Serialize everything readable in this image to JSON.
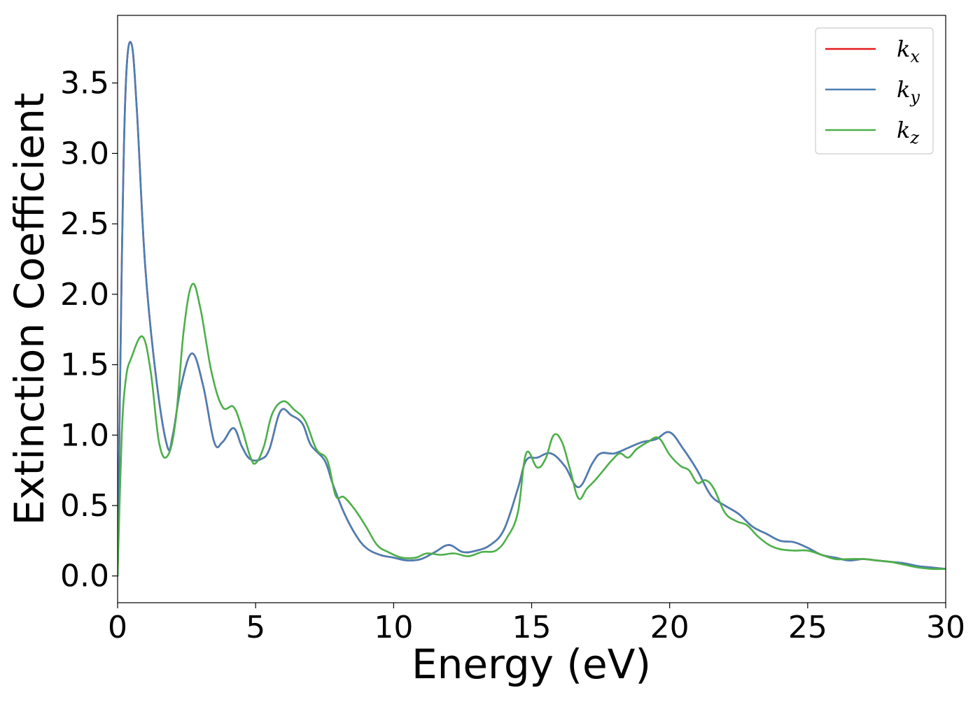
{
  "chart_data": {
    "type": "line",
    "xlabel": "Energy (eV)",
    "ylabel": "Extinction Coefficient",
    "xlim": [
      0,
      30
    ],
    "ylim": [
      -0.19,
      3.98
    ],
    "xticks": [
      0,
      5,
      10,
      15,
      20,
      25,
      30
    ],
    "xtick_labels": [
      "0",
      "5",
      "10",
      "15",
      "20",
      "25",
      "30"
    ],
    "yticks": [
      0.0,
      0.5,
      1.0,
      1.5,
      2.0,
      2.5,
      3.0,
      3.5
    ],
    "ytick_labels": [
      "0.0",
      "0.5",
      "1.0",
      "1.5",
      "2.0",
      "2.5",
      "3.0",
      "3.5"
    ],
    "grid": false,
    "legend_position": "top-right",
    "series": [
      {
        "name": "k",
        "subscript": "x",
        "color": "#e41a1c",
        "x": [
          0,
          0.15,
          0.3,
          0.5,
          0.7,
          1.0,
          1.4,
          1.8,
          2.0,
          2.3,
          2.7,
          3.1,
          3.5,
          3.8,
          4.2,
          4.5,
          4.8,
          5.2,
          5.5,
          5.9,
          6.3,
          6.7,
          7.0,
          7.5,
          7.8,
          8.2,
          8.6,
          9.0,
          9.5,
          10.0,
          10.5,
          11.0,
          11.5,
          12.0,
          12.5,
          13.0,
          13.5,
          14.0,
          14.5,
          14.8,
          15.2,
          15.7,
          16.2,
          16.7,
          17.2,
          17.5,
          18.0,
          18.5,
          19.0,
          19.5,
          20.0,
          20.5,
          21.0,
          21.5,
          22.0,
          22.5,
          23.0,
          23.5,
          24.0,
          24.5,
          25.0,
          25.5,
          26.0,
          26.5,
          27.0,
          27.5,
          28.0,
          28.5,
          29.0,
          29.5,
          30.0
        ],
        "values": [
          0.0,
          2.2,
          3.5,
          3.78,
          3.3,
          2.2,
          1.4,
          0.92,
          1.0,
          1.35,
          1.58,
          1.35,
          0.95,
          0.95,
          1.05,
          0.92,
          0.83,
          0.83,
          0.9,
          1.17,
          1.14,
          1.08,
          0.93,
          0.82,
          0.65,
          0.45,
          0.3,
          0.2,
          0.15,
          0.13,
          0.11,
          0.12,
          0.17,
          0.22,
          0.17,
          0.18,
          0.22,
          0.33,
          0.62,
          0.82,
          0.84,
          0.87,
          0.78,
          0.63,
          0.8,
          0.87,
          0.87,
          0.91,
          0.95,
          0.97,
          1.02,
          0.9,
          0.75,
          0.57,
          0.5,
          0.44,
          0.35,
          0.3,
          0.25,
          0.24,
          0.2,
          0.15,
          0.13,
          0.11,
          0.12,
          0.11,
          0.1,
          0.09,
          0.07,
          0.06,
          0.05
        ]
      },
      {
        "name": "k",
        "subscript": "y",
        "color": "#4a7fb5",
        "x": [
          0,
          0.15,
          0.3,
          0.5,
          0.7,
          1.0,
          1.4,
          1.8,
          2.0,
          2.3,
          2.7,
          3.1,
          3.5,
          3.8,
          4.2,
          4.5,
          4.8,
          5.2,
          5.5,
          5.9,
          6.3,
          6.7,
          7.0,
          7.5,
          7.8,
          8.2,
          8.6,
          9.0,
          9.5,
          10.0,
          10.5,
          11.0,
          11.5,
          12.0,
          12.5,
          13.0,
          13.5,
          14.0,
          14.5,
          14.8,
          15.2,
          15.7,
          16.2,
          16.7,
          17.2,
          17.5,
          18.0,
          18.5,
          19.0,
          19.5,
          20.0,
          20.5,
          21.0,
          21.5,
          22.0,
          22.5,
          23.0,
          23.5,
          24.0,
          24.5,
          25.0,
          25.5,
          26.0,
          26.5,
          27.0,
          27.5,
          28.0,
          28.5,
          29.0,
          29.5,
          30.0
        ],
        "values": [
          0.0,
          2.2,
          3.5,
          3.78,
          3.3,
          2.2,
          1.4,
          0.92,
          1.0,
          1.35,
          1.58,
          1.35,
          0.95,
          0.95,
          1.05,
          0.92,
          0.83,
          0.83,
          0.9,
          1.17,
          1.14,
          1.08,
          0.93,
          0.82,
          0.65,
          0.45,
          0.3,
          0.2,
          0.15,
          0.13,
          0.11,
          0.12,
          0.17,
          0.22,
          0.17,
          0.18,
          0.22,
          0.33,
          0.62,
          0.82,
          0.84,
          0.87,
          0.78,
          0.63,
          0.8,
          0.87,
          0.87,
          0.91,
          0.95,
          0.97,
          1.02,
          0.9,
          0.75,
          0.57,
          0.5,
          0.44,
          0.35,
          0.3,
          0.25,
          0.24,
          0.2,
          0.15,
          0.13,
          0.11,
          0.12,
          0.11,
          0.1,
          0.09,
          0.07,
          0.06,
          0.05
        ]
      },
      {
        "name": "k",
        "subscript": "z",
        "color": "#4daf4a",
        "x": [
          0,
          0.15,
          0.3,
          0.5,
          0.9,
          1.2,
          1.5,
          1.8,
          2.1,
          2.4,
          2.7,
          3.0,
          3.4,
          3.8,
          4.2,
          4.5,
          4.8,
          5.0,
          5.3,
          5.6,
          6.0,
          6.4,
          6.8,
          7.2,
          7.6,
          7.9,
          8.2,
          8.6,
          9.0,
          9.4,
          9.8,
          10.3,
          10.8,
          11.2,
          11.7,
          12.2,
          12.7,
          13.2,
          13.7,
          14.1,
          14.5,
          14.8,
          15.2,
          15.5,
          15.8,
          16.1,
          16.4,
          16.7,
          17.0,
          17.3,
          17.6,
          17.9,
          18.2,
          18.5,
          18.8,
          19.2,
          19.6,
          20.0,
          20.4,
          20.7,
          21.0,
          21.3,
          21.6,
          22.0,
          22.4,
          22.8,
          23.2,
          23.6,
          24.0,
          24.5,
          25.0,
          25.5,
          26.0,
          26.5,
          27.0,
          27.5,
          28.0,
          28.5,
          29.0,
          29.5,
          30.0
        ],
        "values": [
          0.0,
          1.0,
          1.4,
          1.55,
          1.7,
          1.45,
          0.95,
          0.85,
          1.1,
          1.75,
          2.07,
          1.9,
          1.45,
          1.2,
          1.2,
          1.05,
          0.85,
          0.8,
          0.92,
          1.15,
          1.24,
          1.18,
          1.1,
          0.9,
          0.82,
          0.57,
          0.56,
          0.47,
          0.35,
          0.22,
          0.17,
          0.13,
          0.13,
          0.16,
          0.15,
          0.16,
          0.14,
          0.17,
          0.18,
          0.27,
          0.45,
          0.87,
          0.77,
          0.83,
          1.0,
          0.95,
          0.75,
          0.55,
          0.62,
          0.68,
          0.75,
          0.82,
          0.87,
          0.84,
          0.9,
          0.95,
          0.98,
          0.86,
          0.78,
          0.75,
          0.66,
          0.68,
          0.62,
          0.45,
          0.39,
          0.36,
          0.28,
          0.22,
          0.19,
          0.18,
          0.18,
          0.15,
          0.12,
          0.12,
          0.12,
          0.11,
          0.1,
          0.08,
          0.06,
          0.05,
          0.05
        ]
      }
    ]
  }
}
